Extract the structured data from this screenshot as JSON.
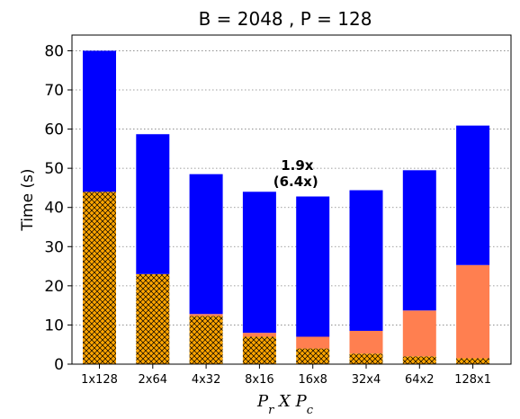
{
  "chart_data": {
    "type": "bar",
    "title": "B = 2048 ,  P = 128",
    "ylabel": "Time (s)",
    "xlabel": {
      "base1": "P",
      "sub1": "r",
      "mid": " X ",
      "base2": "P",
      "sub2": "c"
    },
    "categories": [
      "1x128",
      "2x64",
      "4x32",
      "8x16",
      "16x8",
      "32x4",
      "64x2",
      "128x1"
    ],
    "ylim": [
      0,
      84
    ],
    "yticks": [
      0,
      10,
      20,
      30,
      40,
      50,
      60,
      70,
      80
    ],
    "grid": "horizontal-dotted",
    "stacked": true,
    "series": [
      {
        "values": [
          44,
          23,
          12.3,
          7,
          4,
          2.7,
          2,
          1.5
        ],
        "color": "#ffa500",
        "hatch": "crosshatch"
      },
      {
        "values": [
          0,
          0,
          0.5,
          1,
          3,
          5.8,
          11.7,
          23.8
        ],
        "color": "#ff7f50"
      },
      {
        "values": [
          36,
          35.7,
          35.7,
          36,
          35.8,
          35.9,
          35.8,
          35.6
        ],
        "color": "#0000ff"
      }
    ],
    "annotation": {
      "line1": "1.9x",
      "line2": "(6.4x)",
      "category": "16x8",
      "y": 50
    }
  }
}
